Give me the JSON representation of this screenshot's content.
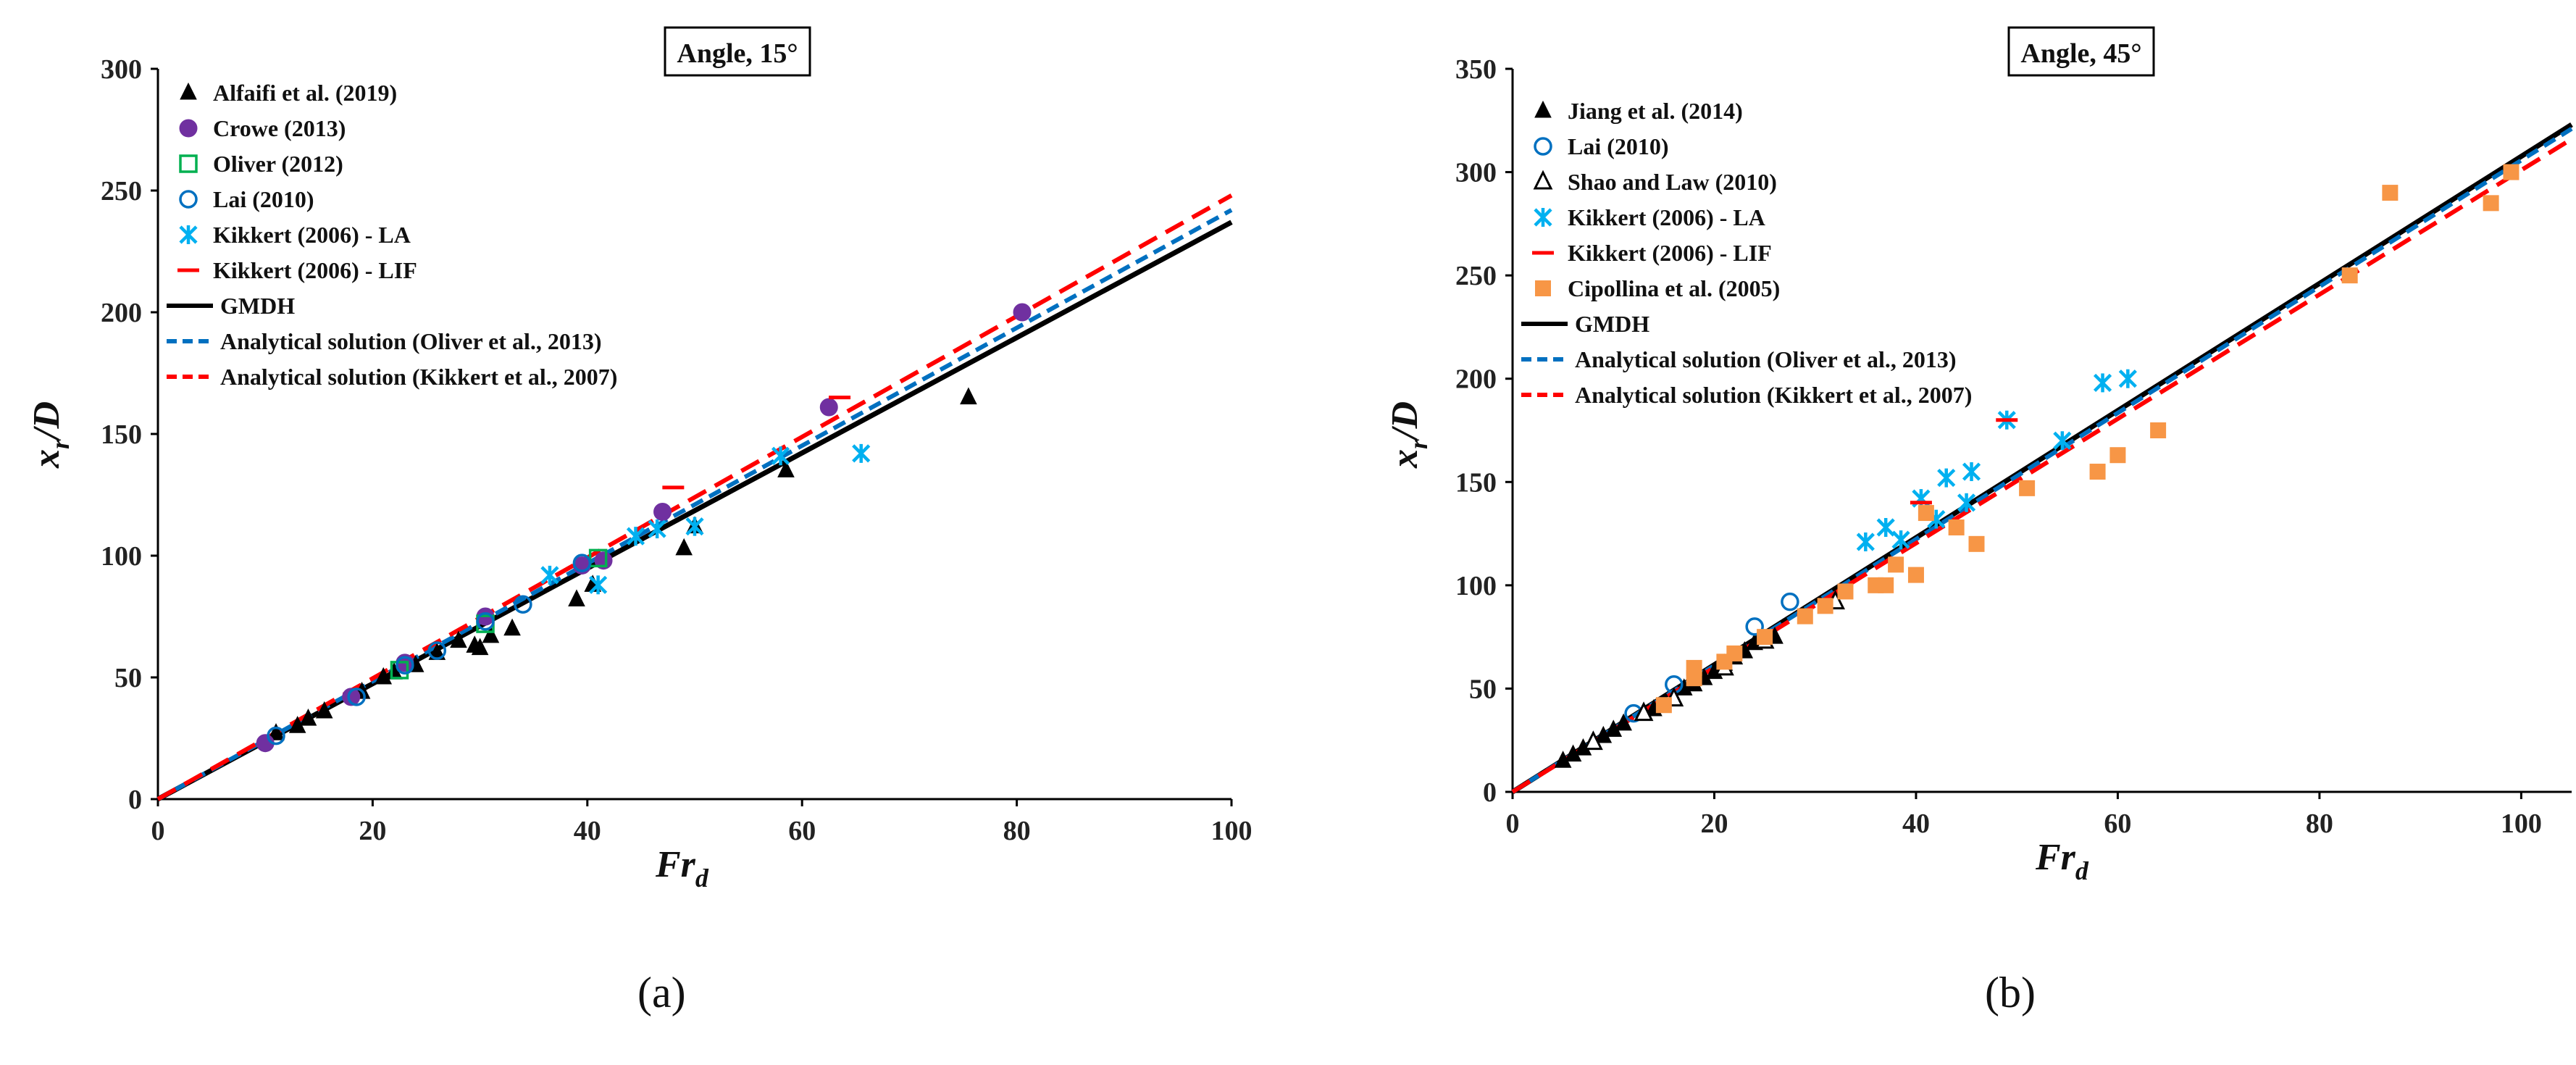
{
  "chart_data": [
    {
      "type": "scatter",
      "title": "Angle, 15°",
      "caption": "(a)",
      "xlabel": "Fr",
      "xlabel_sub": "d",
      "ylabel": "x",
      "ylabel_sub": "r",
      "ylabel_tail": "/D",
      "xlim": [
        0,
        100
      ],
      "ylim": [
        0,
        300
      ],
      "xticks": [
        0,
        20,
        40,
        60,
        80,
        100
      ],
      "yticks": [
        0,
        50,
        100,
        150,
        200,
        250,
        300
      ],
      "legend_position": "top-left",
      "series": [
        {
          "name": "Alfaifi et al. (2019)",
          "marker": "triangle",
          "color": "#000000",
          "points": [
            [
              11,
              27
            ],
            [
              13,
              30
            ],
            [
              14,
              33
            ],
            [
              15.5,
              36
            ],
            [
              19,
              44
            ],
            [
              21,
              50
            ],
            [
              22,
              52
            ],
            [
              24,
              55
            ],
            [
              26,
              60
            ],
            [
              28,
              65
            ],
            [
              29.5,
              63
            ],
            [
              30,
              62
            ],
            [
              31,
              67
            ],
            [
              33,
              70
            ],
            [
              39,
              82
            ],
            [
              40.5,
              88
            ],
            [
              49,
              103
            ],
            [
              50,
              112
            ],
            [
              58.5,
              135
            ],
            [
              75.5,
              165
            ]
          ]
        },
        {
          "name": "Crowe (2013)",
          "marker": "circle",
          "color": "#7030a0",
          "points": [
            [
              10,
              23
            ],
            [
              18,
              42
            ],
            [
              23,
              56
            ],
            [
              30.5,
              75
            ],
            [
              39.5,
              96
            ],
            [
              41.5,
              98
            ],
            [
              47,
              118
            ],
            [
              62.5,
              161
            ],
            [
              80.5,
              200
            ]
          ]
        },
        {
          "name": "Oliver (2012)",
          "marker": "square-open",
          "color": "#00b050",
          "points": [
            [
              22.5,
              53
            ],
            [
              30.5,
              72
            ],
            [
              41,
              99
            ]
          ]
        },
        {
          "name": "Lai (2010)",
          "marker": "circle-open",
          "color": "#0070c0",
          "points": [
            [
              11,
              26
            ],
            [
              18.5,
              42
            ],
            [
              23,
              55
            ],
            [
              26,
              61
            ],
            [
              30.5,
              73
            ],
            [
              34,
              80
            ],
            [
              39.5,
              97
            ]
          ]
        },
        {
          "name": "Kikkert (2006) - LA",
          "marker": "star",
          "color": "#00b0f0",
          "points": [
            [
              36.5,
              92
            ],
            [
              41,
              88
            ],
            [
              44.5,
              108
            ],
            [
              46.5,
              111
            ],
            [
              50,
              112
            ],
            [
              58,
              141
            ],
            [
              65.5,
              142
            ]
          ]
        },
        {
          "name": "Kikkert (2006) - LIF",
          "marker": "dash",
          "color": "#ff0000",
          "points": [
            [
              48,
              128
            ],
            [
              63.5,
              165
            ]
          ]
        }
      ],
      "lines": [
        {
          "name": "GMDH",
          "style": "solid",
          "color": "#000000",
          "x": [
            0,
            100
          ],
          "y": [
            0,
            237
          ]
        },
        {
          "name": "Analytical solution (Oliver et al., 2013)",
          "style": "dashed",
          "color": "#0070c0",
          "x": [
            0,
            100
          ],
          "y": [
            0,
            242
          ]
        },
        {
          "name": "Analytical solution (Kikkert et al., 2007)",
          "style": "dashed",
          "color": "#ff0000",
          "x": [
            0,
            100
          ],
          "y": [
            0,
            248
          ]
        }
      ]
    },
    {
      "type": "scatter",
      "title": "Angle, 45°",
      "caption": "(b)",
      "xlabel": "Fr",
      "xlabel_sub": "d",
      "ylabel": "x",
      "ylabel_sub": "r",
      "ylabel_tail": "/D",
      "xlim": [
        0,
        105
      ],
      "ylim": [
        0,
        350
      ],
      "xticks": [
        0,
        20,
        40,
        60,
        80,
        100
      ],
      "yticks": [
        0,
        50,
        100,
        150,
        200,
        250,
        300,
        350
      ],
      "legend_position": "top-left",
      "series": [
        {
          "name": "Jiang et al. (2014)",
          "marker": "triangle",
          "color": "#000000",
          "points": [
            [
              5,
              15
            ],
            [
              6,
              18
            ],
            [
              7,
              21
            ],
            [
              8,
              24
            ],
            [
              9,
              27
            ],
            [
              10,
              30
            ],
            [
              11,
              33
            ],
            [
              13,
              38
            ],
            [
              14,
              40
            ],
            [
              16,
              45
            ],
            [
              17,
              50
            ],
            [
              18,
              52
            ],
            [
              19,
              55
            ],
            [
              20,
              58
            ],
            [
              21,
              62
            ],
            [
              22,
              65
            ],
            [
              23,
              68
            ],
            [
              24,
              72
            ],
            [
              26,
              75
            ]
          ]
        },
        {
          "name": "Lai (2010)",
          "marker": "circle-open",
          "color": "#0070c0",
          "points": [
            [
              12,
              38
            ],
            [
              16,
              52
            ],
            [
              24,
              80
            ],
            [
              27.5,
              92
            ]
          ]
        },
        {
          "name": "Shao and Law (2010)",
          "marker": "triangle-open",
          "color": "#000000",
          "points": [
            [
              8,
              24
            ],
            [
              13,
              38
            ],
            [
              16,
              45
            ],
            [
              21,
              60
            ],
            [
              25,
              73
            ],
            [
              32,
              92
            ]
          ]
        },
        {
          "name": "Kikkert (2006) - LA",
          "marker": "star",
          "color": "#00b0f0",
          "points": [
            [
              35,
              121
            ],
            [
              37,
              128
            ],
            [
              38.5,
              122
            ],
            [
              40.5,
              142
            ],
            [
              42,
              132
            ],
            [
              43,
              152
            ],
            [
              45,
              140
            ],
            [
              45.5,
              155
            ],
            [
              49,
              180
            ],
            [
              54.5,
              170
            ],
            [
              58.5,
              198
            ],
            [
              61,
              200
            ]
          ]
        },
        {
          "name": "Kikkert (2006) - LIF",
          "marker": "dash",
          "color": "#ff0000",
          "points": [
            [
              49,
              180
            ],
            [
              40.5,
              140
            ]
          ]
        },
        {
          "name": "Cipollina et al. (2005)",
          "marker": "square",
          "color": "#f79646",
          "points": [
            [
              15,
              42
            ],
            [
              18,
              55
            ],
            [
              18,
              60
            ],
            [
              21,
              63
            ],
            [
              22,
              67
            ],
            [
              25,
              75
            ],
            [
              29,
              85
            ],
            [
              31,
              90
            ],
            [
              33,
              97
            ],
            [
              36,
              100
            ],
            [
              37,
              100
            ],
            [
              38,
              110
            ],
            [
              40,
              105
            ],
            [
              41,
              135
            ],
            [
              44,
              128
            ],
            [
              46,
              120
            ],
            [
              51,
              147
            ],
            [
              58,
              155
            ],
            [
              60,
              163
            ],
            [
              64,
              175
            ],
            [
              83,
              250
            ],
            [
              87,
              290
            ],
            [
              97,
              285
            ],
            [
              99,
              300
            ]
          ]
        }
      ],
      "lines": [
        {
          "name": "GMDH",
          "style": "solid",
          "color": "#000000",
          "x": [
            0,
            105
          ],
          "y": [
            0,
            323
          ]
        },
        {
          "name": "Analytical solution (Oliver et al., 2013)",
          "style": "dashed",
          "color": "#0070c0",
          "x": [
            0,
            105
          ],
          "y": [
            0,
            321
          ]
        },
        {
          "name": "Analytical solution (Kikkert et al., 2007)",
          "style": "dashed",
          "color": "#ff0000",
          "x": [
            0,
            105
          ],
          "y": [
            0,
            316
          ]
        }
      ]
    }
  ]
}
